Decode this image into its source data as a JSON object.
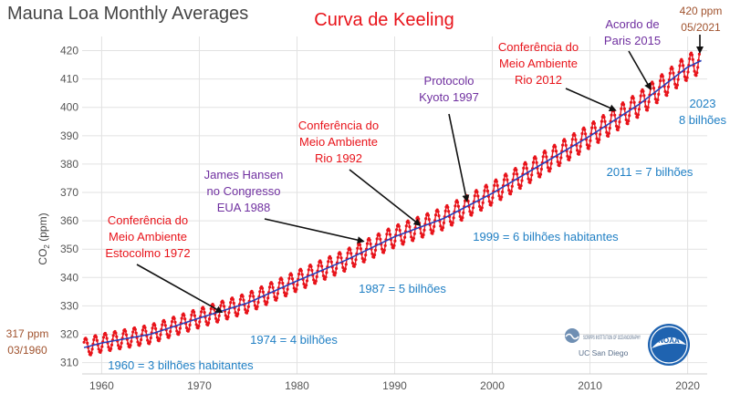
{
  "chart_data": {
    "type": "line",
    "title": "Mauna Loa Monthly Averages",
    "subtitle": "Curva de Keeling",
    "xlabel": "",
    "ylabel": "CO",
    "ylabel_sub": "2",
    "ylabel_unit": " (ppm)",
    "xlim": [
      1958,
      2022
    ],
    "ylim": [
      306,
      425
    ],
    "x_ticks": [
      1960,
      1970,
      1980,
      1990,
      2000,
      2010,
      2020
    ],
    "y_ticks": [
      310,
      320,
      330,
      340,
      350,
      360,
      370,
      380,
      390,
      400,
      410,
      420
    ],
    "grid": true,
    "series": [
      {
        "role": "monthly",
        "color": "#e8131a",
        "seasonal_amplitude_ppm": 3.2,
        "points_per_year": 12
      },
      {
        "role": "trend",
        "color": "#2b3fb8",
        "x": [
          1958.2,
          1960,
          1965,
          1970,
          1975,
          1980,
          1985,
          1990,
          1995,
          2000,
          2005,
          2010,
          2015,
          2020,
          2021.4
        ],
        "y": [
          315.3,
          316.9,
          320.0,
          325.7,
          331.1,
          338.8,
          346.1,
          354.4,
          360.8,
          369.7,
          379.8,
          389.9,
          401.0,
          414.2,
          416.5
        ]
      }
    ],
    "annotations": [
      {
        "id": "title-pt",
        "lines": [
          "Curva de Keeling"
        ],
        "color": "#e8131a"
      },
      {
        "id": "start",
        "lines": [
          "317 ppm",
          "03/1960"
        ],
        "color": "#a0522d"
      },
      {
        "id": "end",
        "lines": [
          "420 ppm",
          "05/2021"
        ],
        "color": "#a0522d"
      },
      {
        "id": "estocolmo",
        "lines": [
          "Conferência do",
          "Meio Ambiente",
          "Estocolmo 1972"
        ],
        "color": "#e8131a",
        "arrow_to_x": 1972.3
      },
      {
        "id": "hansen",
        "lines": [
          "James Hansen",
          "no Congresso",
          "EUA 1988"
        ],
        "color": "#7030a0",
        "arrow_to_x": 1986.8
      },
      {
        "id": "rio92",
        "lines": [
          "Conferência do",
          "Meio Ambiente",
          "Rio 1992"
        ],
        "color": "#e8131a",
        "arrow_to_x": 1992.6
      },
      {
        "id": "kyoto",
        "lines": [
          "Protocolo",
          "Kyoto 1997"
        ],
        "color": "#7030a0",
        "arrow_to_x": 1997.4
      },
      {
        "id": "rio2012",
        "lines": [
          "Conferência do",
          "Meio Ambiente",
          "Rio 2012"
        ],
        "color": "#e8131a",
        "arrow_to_x": 2012.6
      },
      {
        "id": "paris",
        "lines": [
          "Acordo de",
          "Paris 2015"
        ],
        "color": "#7030a0",
        "arrow_to_x": 2016.2
      },
      {
        "id": "pop1960",
        "lines": [
          "1960 = 3 bilhões habitantes"
        ],
        "color": "#1f7fc4"
      },
      {
        "id": "pop1974",
        "lines": [
          "1974 = 4 bilhões"
        ],
        "color": "#1f7fc4"
      },
      {
        "id": "pop1987",
        "lines": [
          "1987 = 5 bilhões"
        ],
        "color": "#1f7fc4"
      },
      {
        "id": "pop1999",
        "lines": [
          "1999 = 6 bilhões habitantes"
        ],
        "color": "#1f7fc4"
      },
      {
        "id": "pop2011",
        "lines": [
          "2011 = 7 bilhões"
        ],
        "color": "#1f7fc4"
      },
      {
        "id": "pop2023",
        "lines": [
          "2023",
          "8 bilhões"
        ],
        "color": "#1f7fc4"
      }
    ]
  },
  "logos": {
    "scripps": "SCRIPPS INSTITUTION OF OCEANOGRAPHY",
    "ucsd": "UC San Diego",
    "noaa": "NOAA"
  }
}
